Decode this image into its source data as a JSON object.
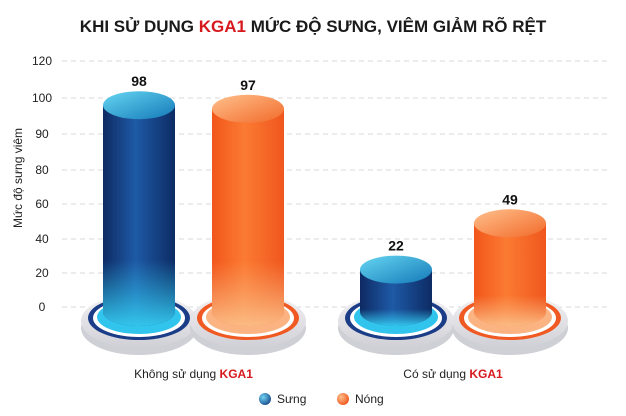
{
  "chart_data": {
    "type": "bar",
    "title": {
      "before": "KHI SỬ DỤNG ",
      "highlight": "KGA1",
      "after": " MỨC ĐỘ SƯNG, VIÊM GIẢM RÕ RỆT"
    },
    "ylabel": "Mức độ sưng viêm",
    "xlabel": "",
    "yticks": [
      0,
      20,
      40,
      60,
      80,
      90,
      100,
      120
    ],
    "groups": [
      {
        "label": "Không sử dụng ",
        "label_highlight": "KGA1"
      },
      {
        "label": "Có sử dụng ",
        "label_highlight": "KGA1"
      }
    ],
    "series": [
      {
        "name": "Sưng",
        "color": "#1c4f8f",
        "values": [
          98,
          22
        ]
      },
      {
        "name": "Nóng",
        "color": "#f7692a",
        "values": [
          97,
          49
        ]
      }
    ],
    "legend_position": "bottom-center",
    "grid": true
  }
}
